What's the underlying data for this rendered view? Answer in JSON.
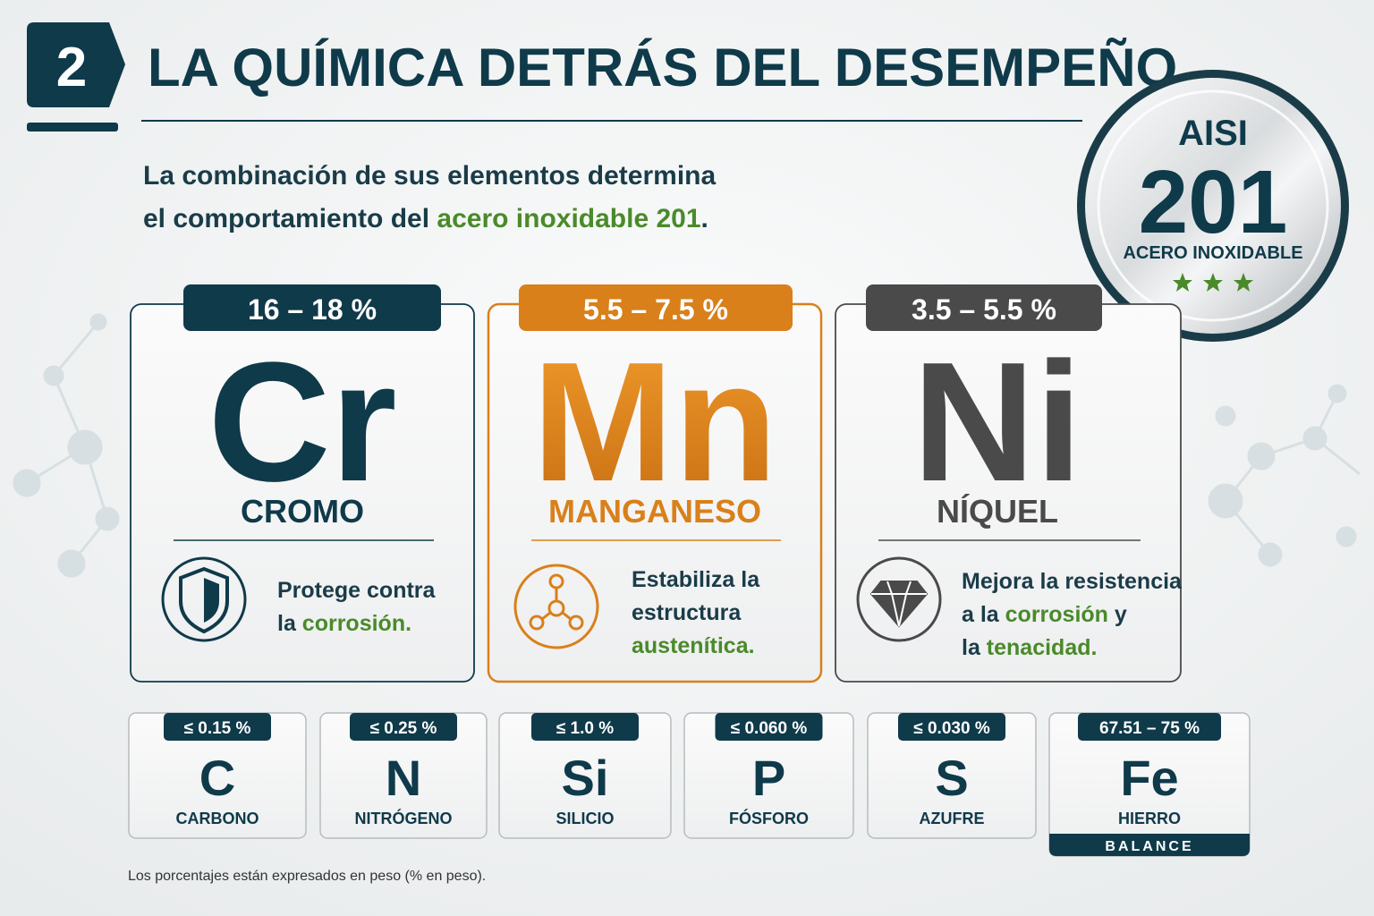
{
  "header": {
    "number": "2",
    "title": "LA QUÍMICA DETRÁS DEL DESEMPEÑO"
  },
  "subtitle": {
    "line1": "La combinación de sus elementos determina",
    "line2": [
      {
        "text": "el comportamiento del "
      },
      {
        "text": "acero inoxidable 201",
        "color": "#4a8a2a"
      },
      {
        "text": "."
      }
    ]
  },
  "badge": {
    "top": "AISI",
    "number": "201",
    "label": "ACERO INOXIDABLE"
  },
  "main_elements": [
    {
      "range": "16 – 18 %",
      "symbol": "Cr",
      "name": "CROMO",
      "color": "#0f3a4a",
      "lines": [
        [
          {
            "text": "Protege contra"
          }
        ],
        [
          {
            "text": "la "
          },
          {
            "text": "corrosión.",
            "color": "#4a8a2a"
          }
        ]
      ]
    },
    {
      "range": "5.5 – 7.5 %",
      "symbol": "Mn",
      "name": "MANGANESO",
      "color": "#d9801a",
      "lines": [
        [
          {
            "text": "Estabiliza la"
          }
        ],
        [
          {
            "text": "estructura"
          }
        ],
        [
          {
            "text": "austenítica.",
            "color": "#4a8a2a"
          }
        ]
      ]
    },
    {
      "range": "3.5 – 5.5 %",
      "symbol": "Ni",
      "name": "NÍQUEL",
      "color": "#4a4a4a",
      "lines": [
        [
          {
            "text": "Mejora la resistencia"
          }
        ],
        [
          {
            "text": "a la "
          },
          {
            "text": "corrosión",
            "color": "#4a8a2a"
          },
          {
            "text": " y"
          }
        ],
        [
          {
            "text": "la "
          },
          {
            "text": "tenacidad.",
            "color": "#4a8a2a"
          }
        ]
      ]
    }
  ],
  "minor_elements": [
    {
      "range": "≤ 0.15 %",
      "symbol": "C",
      "name": "CARBONO"
    },
    {
      "range": "≤ 0.25 %",
      "symbol": "N",
      "name": "NITRÓGENO"
    },
    {
      "range": "≤ 1.0 %",
      "symbol": "Si",
      "name": "SILICIO"
    },
    {
      "range": "≤ 0.060 %",
      "symbol": "P",
      "name": "FÓSFORO"
    },
    {
      "range": "≤ 0.030 %",
      "symbol": "S",
      "name": "AZUFRE"
    },
    {
      "range": "67.51 – 75 %",
      "symbol": "Fe",
      "name": "HIERRO",
      "footer": "BALANCE"
    }
  ],
  "footnote": "Los porcentajes están expresados en peso (% en peso)."
}
